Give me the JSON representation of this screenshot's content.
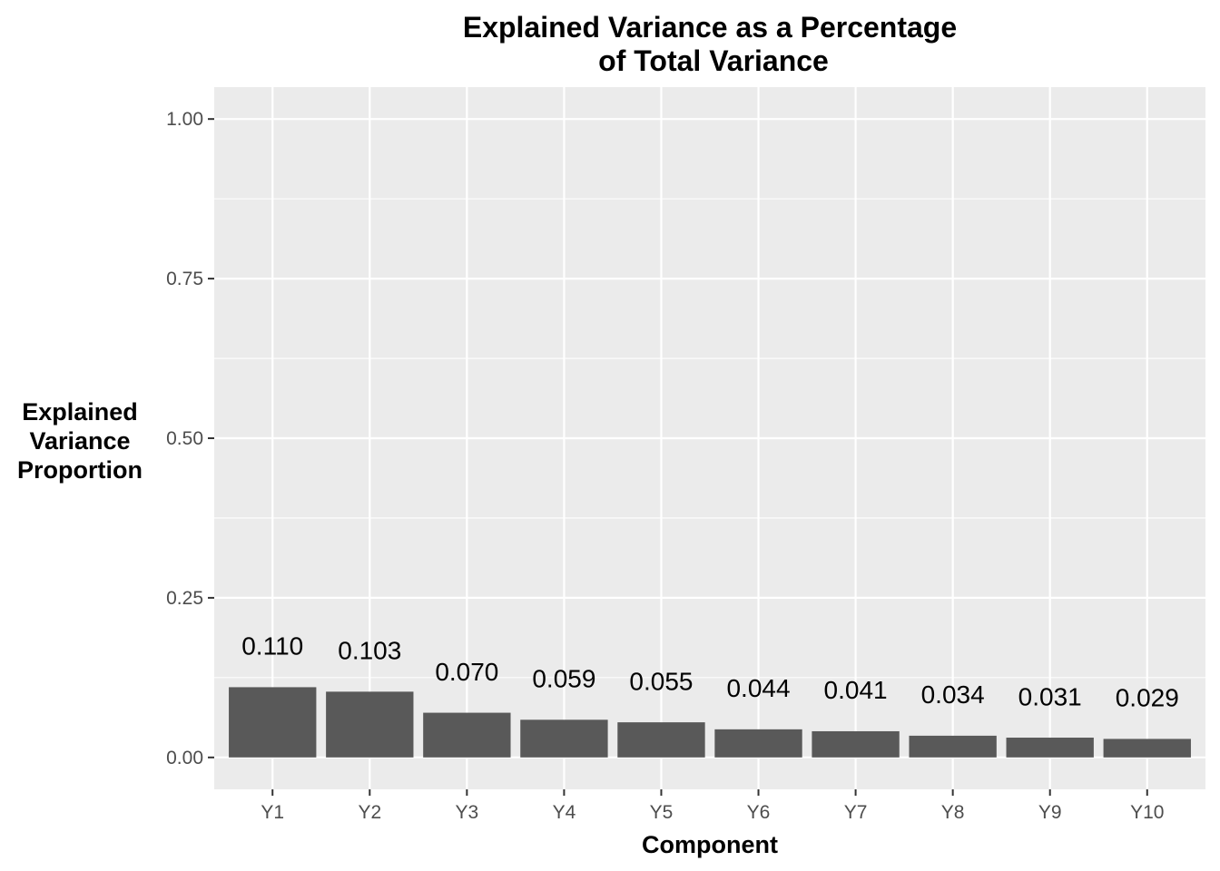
{
  "chart_data": {
    "type": "bar",
    "title_lines": [
      "Explained Variance as a Percentage",
      "of Total Variance"
    ],
    "xlabel": "Component",
    "ylabel_lines": [
      "Explained",
      "Variance",
      "Proportion"
    ],
    "categories": [
      "Y1",
      "Y2",
      "Y3",
      "Y4",
      "Y5",
      "Y6",
      "Y7",
      "Y8",
      "Y9",
      "Y10"
    ],
    "values": [
      0.11,
      0.103,
      0.07,
      0.059,
      0.055,
      0.044,
      0.041,
      0.034,
      0.031,
      0.029
    ],
    "value_labels": [
      "0.110",
      "0.103",
      "0.070",
      "0.059",
      "0.055",
      "0.044",
      "0.041",
      "0.034",
      "0.031",
      "0.029"
    ],
    "ylim": [
      -0.05,
      1.05
    ],
    "yticks": [
      0,
      0.25,
      0.5,
      0.75,
      1.0
    ],
    "ytick_labels": [
      "0.00",
      "0.25",
      "0.50",
      "0.75",
      "1.00"
    ],
    "grid": true,
    "legend": "none",
    "colors": {
      "bar": "#595959",
      "panel": "#ebebeb",
      "grid": "#ffffff"
    }
  }
}
